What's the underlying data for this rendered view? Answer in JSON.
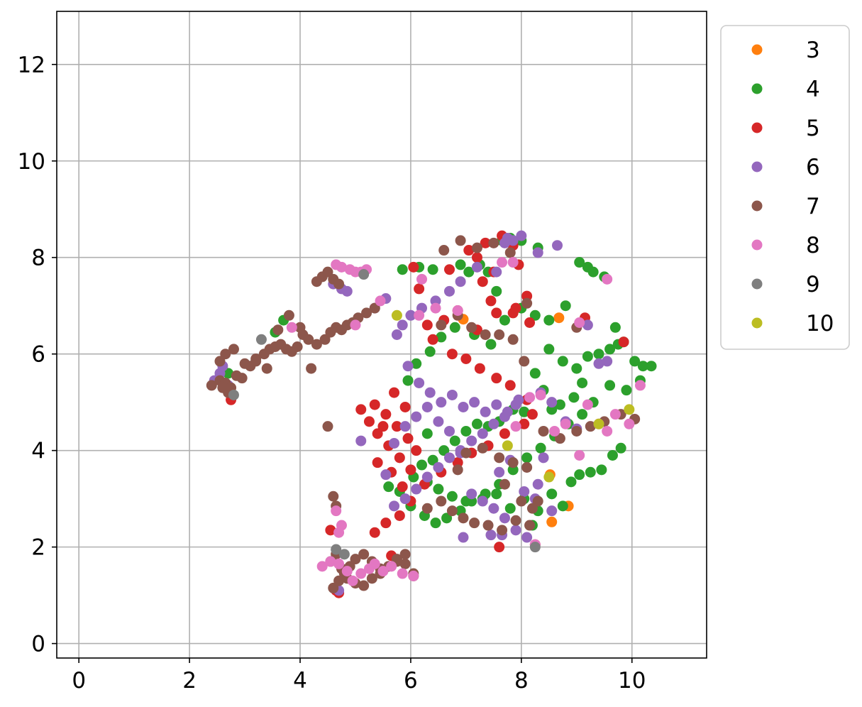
{
  "chart_data": {
    "type": "scatter",
    "title": "",
    "xlabel": "",
    "ylabel": "",
    "xlim": [
      -0.4,
      11.35
    ],
    "ylim": [
      -0.3,
      13.1
    ],
    "xticks": [
      0,
      2,
      4,
      6,
      8,
      10
    ],
    "yticks": [
      0,
      2,
      4,
      6,
      8,
      10,
      12
    ],
    "grid": true,
    "legend": "outside-top-right",
    "series": [
      {
        "name": "3",
        "color": "#ff7f0e",
        "x": [
          8.68,
          8.85,
          8.55,
          6.95,
          8.52
        ],
        "y": [
          6.75,
          2.85,
          2.52,
          6.72,
          3.5
        ]
      },
      {
        "name": "4",
        "color": "#2ca02c",
        "x": [
          5.85,
          6.15,
          6.4,
          6.9,
          7.05,
          7.25,
          7.4,
          7.65,
          7.8,
          8.0,
          8.3,
          8.5,
          8.8,
          9.05,
          9.2,
          9.3,
          9.5,
          9.7,
          9.85,
          10.05,
          10.2,
          10.35,
          10.15,
          9.9,
          9.6,
          9.3,
          9.1,
          8.95,
          8.7,
          8.55,
          8.4,
          8.25,
          8.05,
          7.85,
          7.6,
          7.4,
          7.2,
          7.0,
          6.8,
          6.6,
          6.4,
          6.2,
          6.05,
          6.3,
          6.5,
          6.75,
          7.0,
          7.3,
          7.55,
          7.8,
          8.05,
          8.3,
          8.55,
          8.75,
          8.9,
          9.05,
          9.25,
          9.45,
          9.65,
          9.8,
          5.95,
          6.1,
          6.35,
          6.55,
          6.8,
          7.15,
          7.45,
          7.7,
          8.0,
          8.25,
          8.5,
          8.75,
          9.0,
          9.2,
          9.4,
          9.6,
          9.75,
          5.6,
          5.8,
          6.0,
          6.25,
          6.45,
          6.65,
          6.9,
          7.1,
          7.35,
          7.6,
          7.85,
          8.1,
          8.35,
          8.6,
          8.85,
          9.1,
          3.55,
          3.7,
          2.7,
          8.2,
          7.55,
          6.3
        ],
        "y": [
          7.75,
          7.8,
          7.75,
          7.85,
          7.7,
          7.85,
          7.7,
          8.35,
          8.4,
          8.35,
          8.2,
          6.7,
          7.0,
          7.9,
          7.8,
          7.7,
          7.6,
          6.55,
          6.25,
          5.85,
          5.75,
          5.75,
          5.45,
          5.25,
          5.35,
          5.0,
          5.4,
          5.1,
          4.95,
          4.85,
          5.25,
          5.6,
          4.8,
          4.85,
          4.6,
          4.5,
          4.55,
          4.4,
          4.2,
          4.0,
          3.8,
          3.7,
          3.45,
          3.35,
          3.2,
          3.05,
          2.95,
          3.0,
          3.1,
          2.8,
          3.0,
          2.75,
          3.1,
          2.85,
          3.35,
          3.5,
          3.55,
          3.6,
          3.9,
          4.05,
          5.45,
          5.8,
          6.05,
          6.35,
          6.55,
          6.4,
          6.2,
          6.7,
          6.95,
          6.8,
          6.1,
          5.85,
          5.7,
          5.95,
          6.0,
          6.1,
          6.2,
          3.25,
          3.15,
          2.85,
          2.65,
          2.5,
          2.6,
          2.75,
          2.95,
          3.1,
          3.3,
          3.6,
          3.85,
          4.05,
          4.3,
          4.55,
          4.75,
          6.45,
          6.7,
          5.6,
          2.45,
          7.3,
          4.35
        ]
      },
      {
        "name": "5",
        "color": "#d62728",
        "x": [
          7.05,
          7.2,
          7.35,
          7.65,
          7.85,
          7.95,
          8.1,
          7.3,
          7.45,
          6.85,
          6.6,
          6.3,
          6.15,
          6.05,
          6.4,
          6.75,
          7.0,
          7.25,
          7.55,
          7.8,
          8.1,
          8.2,
          8.05,
          7.7,
          7.4,
          7.1,
          6.85,
          6.55,
          6.25,
          6.0,
          5.8,
          5.6,
          5.4,
          5.25,
          5.1,
          5.35,
          5.55,
          5.75,
          5.95,
          6.1,
          5.9,
          5.7,
          5.5,
          5.4,
          5.65,
          5.85,
          6.0,
          5.8,
          5.55,
          5.35,
          4.55,
          4.65,
          4.7,
          7.2,
          7.55,
          7.85,
          7.6,
          2.75,
          9.15,
          9.85,
          6.7,
          7.5,
          7.9,
          8.15,
          8.25,
          5.65
        ],
        "y": [
          8.15,
          8.0,
          8.3,
          8.45,
          8.25,
          7.85,
          7.2,
          7.5,
          7.1,
          6.9,
          6.7,
          6.6,
          7.35,
          7.8,
          6.3,
          6.0,
          5.9,
          5.7,
          5.5,
          5.35,
          5.05,
          4.75,
          4.55,
          4.35,
          4.1,
          3.95,
          3.75,
          3.55,
          3.3,
          3.6,
          3.85,
          4.1,
          4.35,
          4.6,
          4.85,
          4.95,
          4.75,
          4.5,
          4.25,
          4.0,
          4.9,
          5.2,
          4.5,
          3.75,
          3.55,
          3.25,
          2.95,
          2.65,
          2.5,
          2.3,
          2.35,
          1.1,
          1.05,
          6.5,
          6.85,
          6.85,
          2.0,
          5.05,
          6.75,
          6.25,
          7.75,
          7.7,
          6.95,
          6.65,
          2.05,
          1.82
        ]
      },
      {
        "name": "6",
        "color": "#9467bd",
        "x": [
          7.75,
          7.85,
          8.0,
          8.3,
          8.65,
          7.7,
          7.55,
          7.2,
          6.9,
          6.7,
          6.45,
          6.2,
          6.0,
          5.85,
          5.75,
          5.95,
          6.15,
          6.35,
          6.55,
          6.75,
          6.95,
          7.15,
          7.35,
          7.55,
          7.75,
          7.95,
          8.15,
          8.35,
          8.55,
          8.8,
          9.0,
          9.2,
          9.4,
          9.55,
          7.9,
          7.7,
          7.5,
          7.3,
          7.1,
          6.9,
          6.7,
          6.5,
          6.3,
          6.1,
          5.9,
          5.7,
          5.55,
          5.7,
          5.9,
          6.1,
          6.3,
          6.5,
          6.7,
          6.9,
          7.1,
          7.3,
          7.5,
          7.7,
          7.9,
          8.1,
          8.3,
          2.45,
          2.55,
          2.6,
          2.7,
          4.6,
          4.75,
          4.85,
          4.7,
          5.1,
          5.35,
          5.55,
          6.95,
          7.6,
          7.8,
          8.05,
          8.25,
          8.4,
          8.55,
          7.45,
          7.65
        ],
        "y": [
          8.4,
          8.35,
          8.45,
          8.1,
          8.25,
          8.3,
          7.7,
          7.8,
          7.5,
          7.3,
          7.1,
          6.95,
          6.8,
          6.6,
          6.4,
          5.75,
          5.4,
          5.2,
          5.0,
          5.15,
          4.9,
          5.0,
          4.8,
          4.95,
          4.8,
          5.05,
          5.1,
          5.2,
          5.0,
          4.6,
          4.45,
          6.6,
          5.8,
          5.85,
          4.95,
          4.7,
          4.55,
          4.35,
          4.2,
          4.0,
          3.85,
          3.65,
          3.45,
          3.2,
          3.0,
          2.85,
          3.5,
          4.15,
          4.5,
          4.7,
          4.9,
          4.6,
          4.4,
          3.95,
          3.1,
          2.95,
          2.8,
          2.6,
          2.35,
          2.2,
          3.3,
          5.45,
          5.6,
          5.75,
          5.35,
          7.45,
          7.35,
          7.3,
          1.1,
          4.2,
          6.95,
          7.15,
          2.2,
          3.55,
          3.8,
          3.15,
          3.0,
          3.85,
          2.75,
          2.25,
          2.25
        ]
      },
      {
        "name": "7",
        "color": "#8c564b",
        "x": [
          2.4,
          2.55,
          2.65,
          2.75,
          2.85,
          2.95,
          3.1,
          3.2,
          3.35,
          3.45,
          3.55,
          3.65,
          3.75,
          3.85,
          3.95,
          4.05,
          4.15,
          4.3,
          4.45,
          4.55,
          4.65,
          4.75,
          4.85,
          4.95,
          5.05,
          5.2,
          5.35,
          4.3,
          4.4,
          4.5,
          4.6,
          4.7,
          2.7,
          2.6,
          2.55,
          2.65,
          2.8,
          3.0,
          3.2,
          3.4,
          3.6,
          3.8,
          4.0,
          4.2,
          4.5,
          4.6,
          4.7,
          4.8,
          4.9,
          5.0,
          5.15,
          5.3,
          5.45,
          5.6,
          5.75,
          5.9,
          6.05,
          4.55,
          4.65,
          4.75,
          4.85,
          5.0,
          5.15,
          5.3,
          5.45,
          5.6,
          5.75,
          5.9,
          6.05,
          6.55,
          6.85,
          7.1,
          7.35,
          7.6,
          7.85,
          8.05,
          6.6,
          6.9,
          7.2,
          7.5,
          7.8,
          8.1,
          8.4,
          8.7,
          9.0,
          9.25,
          9.5,
          9.8,
          10.05,
          7.0,
          7.3,
          7.6,
          7.85,
          8.1,
          6.75,
          6.95,
          7.15,
          7.4,
          7.65,
          7.9,
          8.15,
          4.6,
          4.65,
          6.85,
          8.0,
          8.3,
          9.0,
          7.7,
          8.2,
          6.3,
          6.55
        ],
        "y": [
          5.35,
          5.45,
          5.4,
          5.3,
          5.55,
          5.5,
          5.75,
          5.9,
          6.0,
          6.1,
          6.15,
          6.2,
          6.1,
          6.05,
          6.15,
          6.4,
          6.3,
          6.2,
          6.3,
          6.45,
          6.55,
          6.5,
          6.6,
          6.65,
          6.75,
          6.85,
          6.95,
          7.5,
          7.6,
          7.7,
          7.55,
          7.45,
          5.2,
          5.3,
          5.85,
          6.0,
          6.1,
          5.8,
          5.85,
          5.7,
          6.5,
          6.8,
          6.55,
          5.7,
          4.5,
          1.15,
          1.3,
          1.45,
          1.6,
          1.75,
          1.85,
          1.7,
          1.55,
          1.6,
          1.7,
          1.65,
          1.45,
          1.7,
          1.85,
          1.55,
          1.35,
          1.25,
          1.2,
          1.35,
          1.45,
          1.6,
          1.75,
          1.85,
          1.4,
          6.6,
          6.8,
          6.55,
          6.4,
          6.4,
          6.3,
          5.85,
          8.15,
          8.35,
          8.2,
          8.3,
          8.1,
          7.05,
          4.4,
          4.25,
          4.4,
          4.5,
          4.6,
          4.75,
          4.65,
          3.95,
          4.05,
          3.85,
          3.75,
          3.65,
          2.75,
          2.6,
          2.5,
          2.45,
          2.35,
          2.55,
          2.45,
          3.05,
          2.85,
          3.6,
          2.95,
          2.95,
          6.55,
          3.3,
          2.8,
          2.8,
          2.95
        ]
      },
      {
        "name": "8",
        "color": "#e377c2",
        "x": [
          4.65,
          4.75,
          4.9,
          5.0,
          5.1,
          5.2,
          3.85,
          4.4,
          4.55,
          4.7,
          4.85,
          4.95,
          5.1,
          5.25,
          5.35,
          5.5,
          5.65,
          5.85,
          6.05,
          4.65,
          4.75,
          4.7,
          6.15,
          6.45,
          6.85,
          6.2,
          7.65,
          7.85,
          8.15,
          8.35,
          8.6,
          8.8,
          9.05,
          9.2,
          9.4,
          9.55,
          9.7,
          9.95,
          10.15,
          7.9,
          8.25,
          9.05,
          9.55,
          5.0,
          5.45
        ],
        "y": [
          7.85,
          7.8,
          7.75,
          7.7,
          7.7,
          7.75,
          6.55,
          1.6,
          1.7,
          1.65,
          1.5,
          1.3,
          1.45,
          1.55,
          1.65,
          1.5,
          1.6,
          1.45,
          1.4,
          2.75,
          2.45,
          2.3,
          6.8,
          6.95,
          6.9,
          7.55,
          7.9,
          7.9,
          5.1,
          5.15,
          4.4,
          4.55,
          6.65,
          4.95,
          4.55,
          4.4,
          4.75,
          4.55,
          5.35,
          4.5,
          2.05,
          3.9,
          7.55,
          6.6,
          7.1
        ]
      },
      {
        "name": "9",
        "color": "#7f7f7f",
        "x": [
          2.8,
          3.3,
          5.15,
          4.65,
          4.8,
          8.25
        ],
        "y": [
          5.15,
          6.3,
          7.65,
          1.95,
          1.85,
          2.0
        ]
      },
      {
        "name": "10",
        "color": "#bcbd22",
        "x": [
          5.75,
          8.5,
          9.4,
          9.95,
          7.75
        ],
        "y": [
          6.8,
          3.45,
          4.55,
          4.85,
          4.1
        ]
      }
    ]
  }
}
